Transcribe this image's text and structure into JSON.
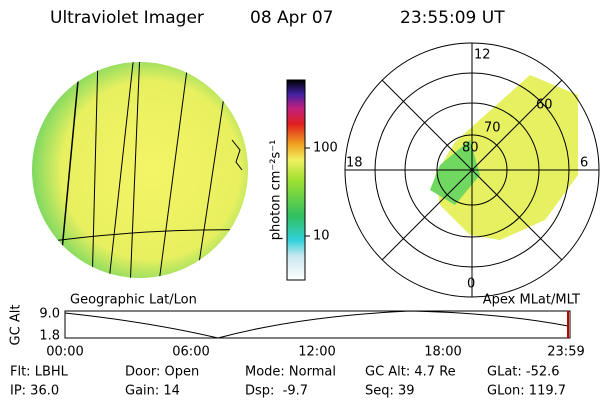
{
  "header": {
    "title": "Ultraviolet Imager",
    "date": "08 Apr 07",
    "time": "23:55:09 UT"
  },
  "colorbar": {
    "label": "photon cm⁻²s⁻¹",
    "ticks": [
      "100",
      "10"
    ]
  },
  "panels": {
    "left_label": "Geographic Lat/Lon",
    "right_label": "Apex MLat/MLT"
  },
  "polar": {
    "mlt_labels": [
      "12",
      "18",
      "6",
      "0"
    ],
    "lat_labels": [
      "80",
      "70",
      "60"
    ]
  },
  "altitude_plot": {
    "ylabel": "GC Alt",
    "yticks": [
      "9.0",
      "1.8"
    ],
    "xticks": [
      "00:00",
      "06:00",
      "12:00",
      "18:00",
      "23:59"
    ]
  },
  "footer": {
    "rows": [
      [
        "Flt: LBHL",
        "Door: Open",
        "Mode: Normal",
        "GC Alt: 4.7 Re",
        "GLat: -52.6"
      ],
      [
        "IP: 36.0",
        "Gain: 14",
        "Dsp:  -9.7",
        "Seq: 39",
        "GLon: 119.7"
      ]
    ]
  }
}
